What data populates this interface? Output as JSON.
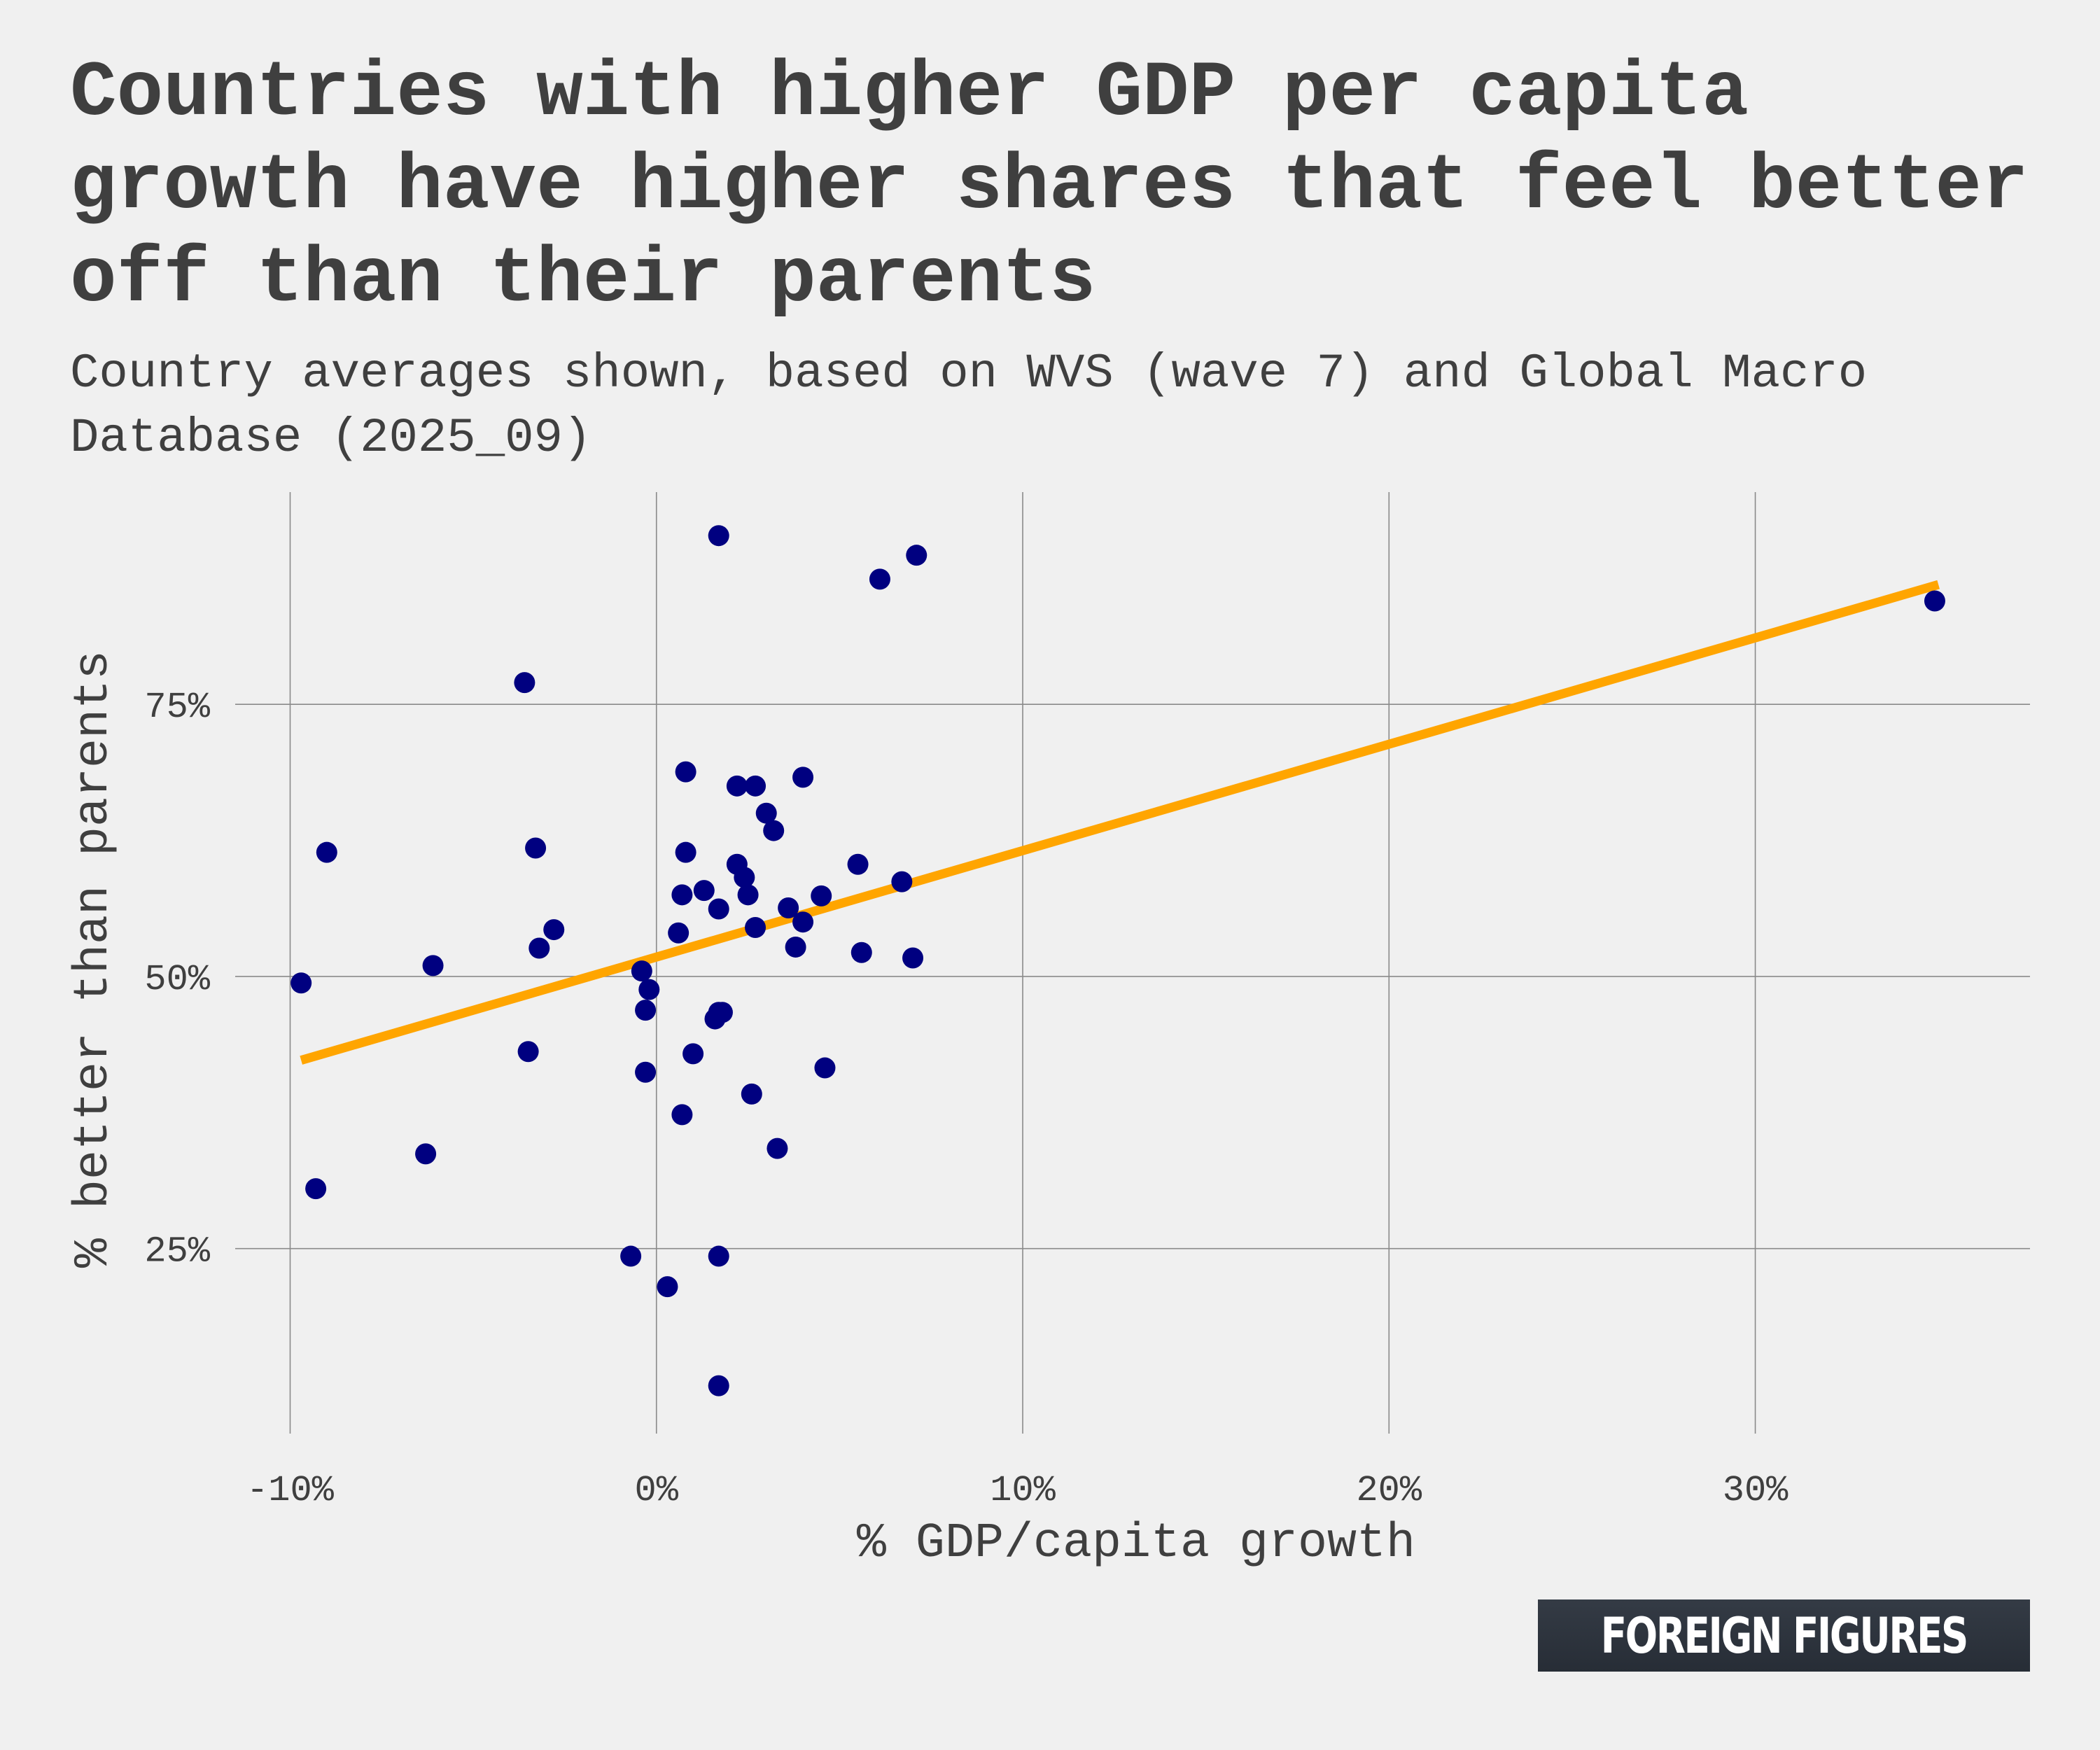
{
  "title": "Countries with higher GDP per capita growth have higher shares that feel better off than their parents",
  "subtitle": "Country averages shown, based on WVS (wave 7) and Global Macro Database (2025_09)",
  "brand": "FOREIGN FIGURES",
  "colors": {
    "background": "#f0f0f0",
    "points": "#000080",
    "trendline": "#ffa500",
    "grid": "#8a8a8a",
    "text": "#3f3f3f"
  },
  "chart_data": {
    "type": "scatter",
    "xlabel": "% GDP/capita growth",
    "ylabel": "% better than parents",
    "xlim": [
      -11.5,
      37.5
    ],
    "ylim": [
      8,
      94.5
    ],
    "x_ticks": [
      {
        "value": -10,
        "label": "-10%"
      },
      {
        "value": 0,
        "label": "0%"
      },
      {
        "value": 10,
        "label": "10%"
      },
      {
        "value": 20,
        "label": "20%"
      },
      {
        "value": 30,
        "label": "30%"
      }
    ],
    "y_ticks": [
      {
        "value": 25,
        "label": "25%"
      },
      {
        "value": 50,
        "label": "50%"
      },
      {
        "value": 75,
        "label": "75%"
      }
    ],
    "grid": true,
    "trendline": {
      "x": [
        -9.7,
        35.0
      ],
      "y": [
        42.3,
        86.0
      ]
    },
    "points": [
      {
        "x": 1.7,
        "y": 90.5
      },
      {
        "x": 7.1,
        "y": 88.7
      },
      {
        "x": 6.1,
        "y": 86.5
      },
      {
        "x": 34.9,
        "y": 84.5
      },
      {
        "x": -3.6,
        "y": 77.0
      },
      {
        "x": 0.8,
        "y": 68.8
      },
      {
        "x": 4.0,
        "y": 68.3
      },
      {
        "x": 2.2,
        "y": 67.5
      },
      {
        "x": 2.7,
        "y": 67.5
      },
      {
        "x": 3.0,
        "y": 65.0
      },
      {
        "x": 3.2,
        "y": 63.4
      },
      {
        "x": -3.3,
        "y": 61.8
      },
      {
        "x": -9.0,
        "y": 61.4
      },
      {
        "x": 0.8,
        "y": 61.4
      },
      {
        "x": 5.5,
        "y": 60.3
      },
      {
        "x": 2.2,
        "y": 60.3
      },
      {
        "x": 2.4,
        "y": 59.1
      },
      {
        "x": 6.7,
        "y": 58.7
      },
      {
        "x": 1.3,
        "y": 57.9
      },
      {
        "x": 0.7,
        "y": 57.5
      },
      {
        "x": 2.5,
        "y": 57.5
      },
      {
        "x": 4.5,
        "y": 57.4
      },
      {
        "x": 3.6,
        "y": 56.3
      },
      {
        "x": 1.7,
        "y": 56.2
      },
      {
        "x": 4.0,
        "y": 55.0
      },
      {
        "x": 2.7,
        "y": 54.5
      },
      {
        "x": -2.8,
        "y": 54.3
      },
      {
        "x": 0.6,
        "y": 54.0
      },
      {
        "x": -3.2,
        "y": 52.6
      },
      {
        "x": 3.8,
        "y": 52.7
      },
      {
        "x": 5.6,
        "y": 52.2
      },
      {
        "x": 7.0,
        "y": 51.7
      },
      {
        "x": -6.1,
        "y": 51.0
      },
      {
        "x": -0.4,
        "y": 50.5
      },
      {
        "x": -9.7,
        "y": 49.4
      },
      {
        "x": -0.2,
        "y": 48.8
      },
      {
        "x": -0.3,
        "y": 46.9
      },
      {
        "x": 1.7,
        "y": 46.7
      },
      {
        "x": 1.8,
        "y": 46.7
      },
      {
        "x": 1.6,
        "y": 46.1
      },
      {
        "x": -3.5,
        "y": 43.1
      },
      {
        "x": 1.0,
        "y": 42.9
      },
      {
        "x": 4.6,
        "y": 41.6
      },
      {
        "x": -0.3,
        "y": 41.2
      },
      {
        "x": 2.6,
        "y": 39.2
      },
      {
        "x": 0.7,
        "y": 37.3
      },
      {
        "x": 3.3,
        "y": 34.2
      },
      {
        "x": -6.3,
        "y": 33.7
      },
      {
        "x": -9.3,
        "y": 30.5
      },
      {
        "x": -0.7,
        "y": 24.3
      },
      {
        "x": 1.7,
        "y": 24.3
      },
      {
        "x": 0.3,
        "y": 21.5
      },
      {
        "x": 1.7,
        "y": 12.4
      }
    ]
  }
}
